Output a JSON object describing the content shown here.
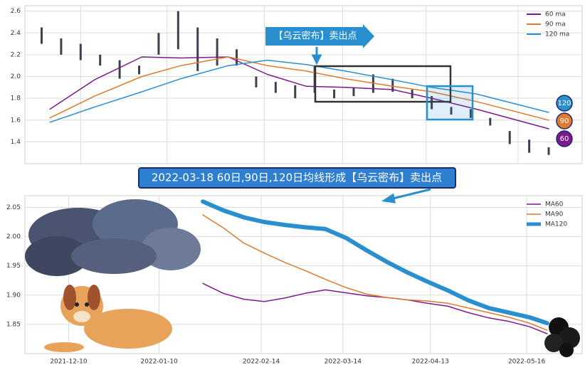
{
  "chart_data": [
    {
      "type": "line",
      "xlim": [
        "2021-11-20",
        "2022-06-08"
      ],
      "ylim": [
        1.2,
        2.65
      ],
      "yticks": [
        1.4,
        1.6,
        1.8,
        {
          "value": 2,
          "label": "2.0"
        },
        2.2,
        2.4,
        2.6
      ],
      "grid": true,
      "legend": "upper right",
      "annotation": "【乌云密布】卖出点",
      "price": {
        "color": "#3c4150",
        "x": [
          "2021-11-26",
          "2021-12-03",
          "2021-12-10",
          "2021-12-17",
          "2021-12-24",
          "2021-12-31",
          "2022-01-07",
          "2022-01-14",
          "2022-01-21",
          "2022-01-28",
          "2022-02-04",
          "2022-02-11",
          "2022-02-18",
          "2022-02-25",
          "2022-03-04",
          "2022-03-11",
          "2022-03-18",
          "2022-03-25",
          "2022-04-01",
          "2022-04-08",
          "2022-04-15",
          "2022-04-22",
          "2022-04-29",
          "2022-05-06",
          "2022-05-13",
          "2022-05-20",
          "2022-05-27"
        ],
        "high": [
          2.45,
          2.35,
          2.3,
          2.2,
          2.15,
          2.1,
          2.4,
          2.6,
          2.45,
          2.35,
          2.25,
          2.0,
          1.95,
          1.92,
          2.1,
          1.88,
          1.9,
          2.02,
          1.98,
          1.88,
          1.82,
          1.72,
          1.7,
          1.62,
          1.5,
          1.42,
          1.35
        ],
        "low": [
          2.3,
          2.2,
          2.15,
          2.1,
          1.98,
          2.02,
          2.2,
          2.25,
          2.05,
          2.1,
          2.1,
          1.9,
          1.85,
          1.8,
          1.85,
          1.8,
          1.82,
          1.85,
          1.86,
          1.8,
          1.7,
          1.65,
          1.62,
          1.55,
          1.38,
          1.3,
          1.28
        ]
      },
      "x": [
        "2021-11-29",
        "2021-12-15",
        "2022-01-01",
        "2022-01-15",
        "2022-02-01",
        "2022-02-15",
        "2022-03-01",
        "2022-03-15",
        "2022-04-01",
        "2022-04-15",
        "2022-05-01",
        "2022-05-27"
      ],
      "series": [
        {
          "name": "60 ma",
          "color": "#7b1a8c",
          "end_label": "60",
          "values": [
            1.7,
            1.97,
            2.18,
            2.17,
            2.18,
            2.02,
            1.91,
            1.9,
            1.88,
            1.8,
            1.7,
            1.52
          ]
        },
        {
          "name": "90 ma",
          "color": "#e07a2e",
          "end_label": "90",
          "values": [
            1.62,
            1.82,
            2.0,
            2.1,
            2.18,
            2.1,
            2.05,
            1.98,
            1.91,
            1.86,
            1.77,
            1.6
          ]
        },
        {
          "name": "120 ma",
          "color": "#2a8fcf",
          "end_label": "120",
          "values": [
            1.58,
            1.72,
            1.86,
            1.98,
            2.1,
            2.15,
            2.11,
            2.05,
            1.97,
            1.9,
            1.84,
            1.67
          ]
        }
      ]
    },
    {
      "type": "line",
      "title": "2022-03-18 60日,90日,120日均线形成【乌云密布】卖出点",
      "xlim": [
        "2021-11-25",
        "2022-06-04"
      ],
      "xticks": [
        "2021-12-10",
        "2022-01-10",
        "2022-02-14",
        "2022-03-14",
        "2022-04-13",
        "2022-05-16"
      ],
      "ylim": [
        1.8,
        2.07
      ],
      "yticks": [
        1.85,
        {
          "value": 1.9,
          "label": "1.90"
        },
        1.95,
        {
          "value": 2,
          "label": "2.00"
        },
        2.05
      ],
      "grid": true,
      "legend": "upper right",
      "x": [
        "2022-01-25",
        "2022-02-01",
        "2022-02-08",
        "2022-02-15",
        "2022-02-22",
        "2022-03-01",
        "2022-03-08",
        "2022-03-15",
        "2022-03-22",
        "2022-03-29",
        "2022-04-05",
        "2022-04-12",
        "2022-04-19",
        "2022-04-26",
        "2022-05-03",
        "2022-05-10",
        "2022-05-17",
        "2022-05-23"
      ],
      "series": [
        {
          "name": "MA60",
          "color": "#7b1a8c",
          "width": 1.5,
          "values": [
            1.92,
            1.903,
            1.893,
            1.889,
            1.895,
            1.903,
            1.909,
            1.904,
            1.899,
            1.896,
            1.892,
            1.886,
            1.881,
            1.87,
            1.861,
            1.855,
            1.846,
            1.834
          ]
        },
        {
          "name": "MA90",
          "color": "#e07a2e",
          "width": 1.5,
          "values": [
            2.037,
            2.015,
            1.989,
            1.972,
            1.956,
            1.942,
            1.927,
            1.913,
            1.902,
            1.896,
            1.892,
            1.89,
            1.886,
            1.878,
            1.87,
            1.862,
            1.852,
            1.84
          ]
        },
        {
          "name": "MA120",
          "color": "#2a8fcf",
          "width": 6,
          "values": [
            2.06,
            2.045,
            2.033,
            2.025,
            2.02,
            2.016,
            2.013,
            1.998,
            1.977,
            1.957,
            1.939,
            1.923,
            1.908,
            1.891,
            1.878,
            1.87,
            1.862,
            1.852
          ]
        }
      ]
    }
  ]
}
